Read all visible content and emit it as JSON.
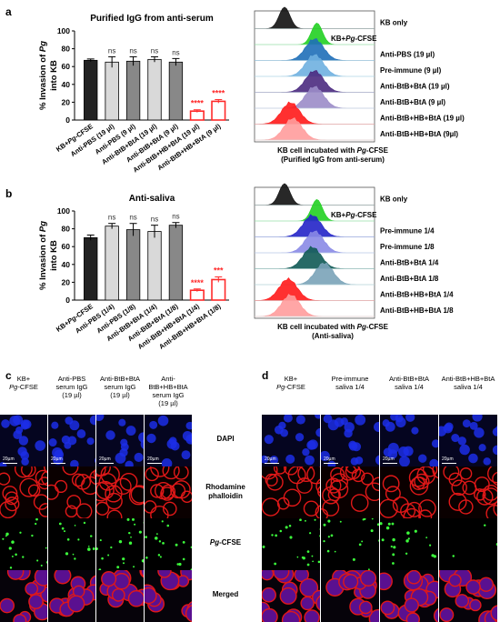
{
  "panels": {
    "a": "a",
    "b": "b",
    "c": "c",
    "d": "d"
  },
  "chart_data": [
    {
      "id": "a-bar",
      "type": "bar",
      "title": "Purified IgG from anti-serum",
      "ylabel_parts": [
        "% Invasion of ",
        "Pg",
        " into KB"
      ],
      "ylim": [
        0,
        100
      ],
      "yticks": [
        0,
        20,
        40,
        60,
        80,
        100
      ],
      "categories": [
        "KB+Pg-CFSE",
        "Anti-PBS (19 µl)",
        "Anti-PBS (9 µl)",
        "Anti-BtB+BtA (19 µl)",
        "Anti-BtB+BtA (9 µl)",
        "Anti-BtB+HB+BtA (19 µl)",
        "Anti-BtB+HB+BtA (9 µl)"
      ],
      "values": [
        67,
        65,
        66,
        68,
        65,
        10,
        21
      ],
      "errors": [
        1.5,
        6,
        5,
        3,
        4,
        1.5,
        2
      ],
      "colors": [
        "#222222",
        "#d9d9d9",
        "#888888",
        "#d9d9d9",
        "#888888",
        "#ff2a2a",
        "#ff2a2a"
      ],
      "significance": [
        "",
        "ns",
        "ns",
        "ns",
        "ns",
        "****",
        "****"
      ]
    },
    {
      "id": "b-bar",
      "type": "bar",
      "title": "Anti-saliva",
      "ylabel_parts": [
        "% Invasion of ",
        "Pg",
        " into KB"
      ],
      "ylim": [
        0,
        100
      ],
      "yticks": [
        0,
        20,
        40,
        60,
        80,
        100
      ],
      "categories": [
        "KB+Pg-CFSE",
        "Anti-PBS (1/4)",
        "Anti-PBS (1/8)",
        "Anti-BtB+BtA (1/4)",
        "Anti-BtB+BtA (1/8)",
        "Anti-BtB+HB+BtA (1/4)",
        "Anti-BtB+HB+BtA (1/8)"
      ],
      "values": [
        70,
        83,
        79,
        77,
        84,
        11,
        23
      ],
      "errors": [
        3,
        3,
        7,
        7,
        3,
        1.5,
        3
      ],
      "colors": [
        "#222222",
        "#d9d9d9",
        "#888888",
        "#d9d9d9",
        "#888888",
        "#ff2a2a",
        "#ff2a2a"
      ],
      "significance": [
        "",
        "ns",
        "ns",
        "ns",
        "ns",
        "****",
        "***"
      ]
    }
  ],
  "flow_a": {
    "caption_line1_parts": [
      "KB cell incubated with ",
      "Pg",
      "-CFSE"
    ],
    "caption_line2": "(Purified IgG from anti-serum)",
    "rows": [
      {
        "label_parts": [
          "KB only",
          "",
          ""
        ],
        "color": "#111111",
        "peak": 0.25,
        "sharp": true
      },
      {
        "label_parts": [
          "KB+",
          "Pg",
          "-CFSE"
        ],
        "color": "#22d022",
        "peak": 0.52,
        "sharp": true
      },
      {
        "label_parts": [
          "Anti-PBS (19 µl)",
          "",
          ""
        ],
        "color": "#1f6fb8",
        "peak": 0.5,
        "sharp": false
      },
      {
        "label_parts": [
          "Pre-immune (9 µl)",
          "",
          ""
        ],
        "color": "#6fb0e0",
        "peak": 0.5,
        "sharp": false
      },
      {
        "label_parts": [
          "Anti-BtB+BtA (19 µl)",
          "",
          ""
        ],
        "color": "#4b2a80",
        "peak": 0.5,
        "sharp": false
      },
      {
        "label_parts": [
          "Anti-BtB+BtA (9 µl)",
          "",
          ""
        ],
        "color": "#9b8cc8",
        "peak": 0.5,
        "sharp": false
      },
      {
        "label_parts": [
          "Anti-BtB+HB+BtA (19 µl)",
          "",
          ""
        ],
        "color": "#ff1a1a",
        "peak": 0.3,
        "sharp": false
      },
      {
        "label_parts": [
          "Anti-BtB+HB+BtA (9µl)",
          "",
          ""
        ],
        "color": "#ff9c9c",
        "peak": 0.32,
        "sharp": false
      }
    ]
  },
  "flow_b": {
    "caption_line1_parts": [
      "KB cell incubated with ",
      "Pg",
      "-CFSE"
    ],
    "caption_line2": "(Anti-saliva)",
    "rows": [
      {
        "label_parts": [
          "KB only",
          "",
          ""
        ],
        "color": "#111111",
        "peak": 0.25,
        "sharp": true
      },
      {
        "label_parts": [
          "KB+",
          "Pg",
          "-CFSE"
        ],
        "color": "#22d022",
        "peak": 0.52,
        "sharp": true
      },
      {
        "label_parts": [
          "Pre-immune 1/4",
          "",
          ""
        ],
        "color": "#2424c8",
        "peak": 0.48,
        "sharp": false
      },
      {
        "label_parts": [
          "Pre-immune 1/8",
          "",
          ""
        ],
        "color": "#8a8ae6",
        "peak": 0.5,
        "sharp": false
      },
      {
        "label_parts": [
          "Anti-BtB+BtA 1/4",
          "",
          ""
        ],
        "color": "#0f5a55",
        "peak": 0.48,
        "sharp": false
      },
      {
        "label_parts": [
          "Anti-BtB+BtA 1/8",
          "",
          ""
        ],
        "color": "#7aa3b8",
        "peak": 0.58,
        "sharp": false
      },
      {
        "label_parts": [
          "Anti-BtB+HB+BtA 1/4",
          "",
          ""
        ],
        "color": "#ff1a1a",
        "peak": 0.28,
        "sharp": false
      },
      {
        "label_parts": [
          "Anti-BtB+HB+BtA 1/8",
          "",
          ""
        ],
        "color": "#ff9c9c",
        "peak": 0.3,
        "sharp": false
      }
    ]
  },
  "micro_c": {
    "col_titles": [
      [
        "KB+",
        "Pg-CFSE",
        ""
      ],
      [
        "Anti-PBS",
        "serum IgG",
        "(19 µl)"
      ],
      [
        "Anti-BtB+BtA",
        "serum IgG",
        "(19 µl)"
      ],
      [
        "Anti-BtB+HB+BtA",
        "serum IgG",
        "(19 µl)"
      ]
    ],
    "scale_label": "20µm"
  },
  "micro_d": {
    "col_titles": [
      [
        "KB+",
        "Pg-CFSE",
        ""
      ],
      [
        "Pre-immune",
        "saliva 1/4",
        ""
      ],
      [
        "Anti-BtB+BtA",
        "saliva 1/4",
        ""
      ],
      [
        "Anti-BtB+HB+BtA",
        "saliva 1/4",
        ""
      ]
    ],
    "scale_label": "20µm"
  },
  "row_labels": {
    "dapi": "DAPI",
    "rhodamine": [
      "Rhodamine",
      "phalloidin"
    ],
    "pg_parts": [
      "Pg",
      "-CFSE"
    ],
    "merged": "Merged"
  },
  "colors": {
    "dapi_bg": "#050520",
    "dapi_cell": "#1c2ee6",
    "rho_bg": "#0a0000",
    "rho_cell": "#e01818",
    "pg_bg": "#000000",
    "pg_dot": "#3cff3c"
  }
}
